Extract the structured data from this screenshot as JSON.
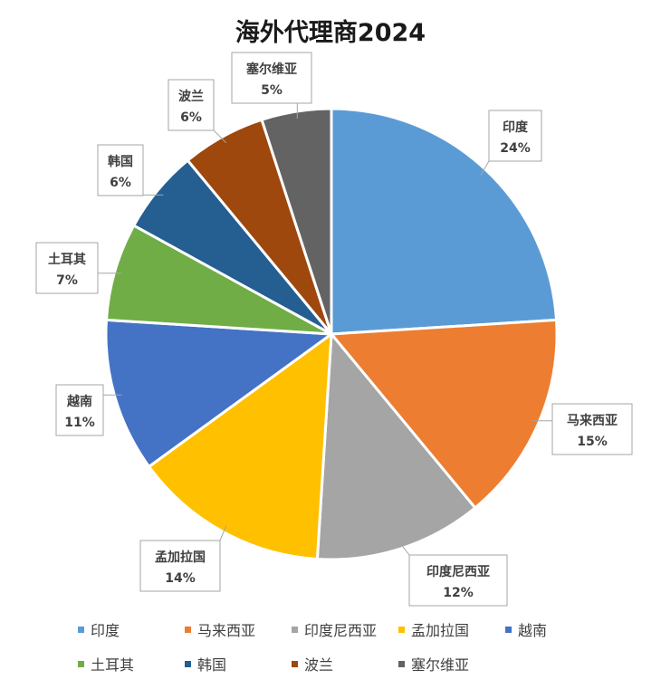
{
  "chart_data": {
    "type": "pie",
    "title": "海外代理商2024",
    "categories": [
      "印度",
      "马来西亚",
      "印度尼西亚",
      "孟加拉国",
      "越南",
      "土耳其",
      "韩国",
      "波兰",
      "塞尔维亚"
    ],
    "values": [
      24,
      15,
      12,
      14,
      11,
      7,
      6,
      6,
      5
    ],
    "data_labels": [
      "24%",
      "15%",
      "12%",
      "14%",
      "11%",
      "7%",
      "6%",
      "6%",
      "5%"
    ],
    "colors": [
      "#5B9BD5",
      "#ED7D31",
      "#A5A5A5",
      "#FFC000",
      "#4472C4",
      "#70AD47",
      "#255E91",
      "#9E480E",
      "#636363"
    ],
    "legend_position": "bottom",
    "start_angle_deg": 0,
    "direction": "clockwise"
  }
}
